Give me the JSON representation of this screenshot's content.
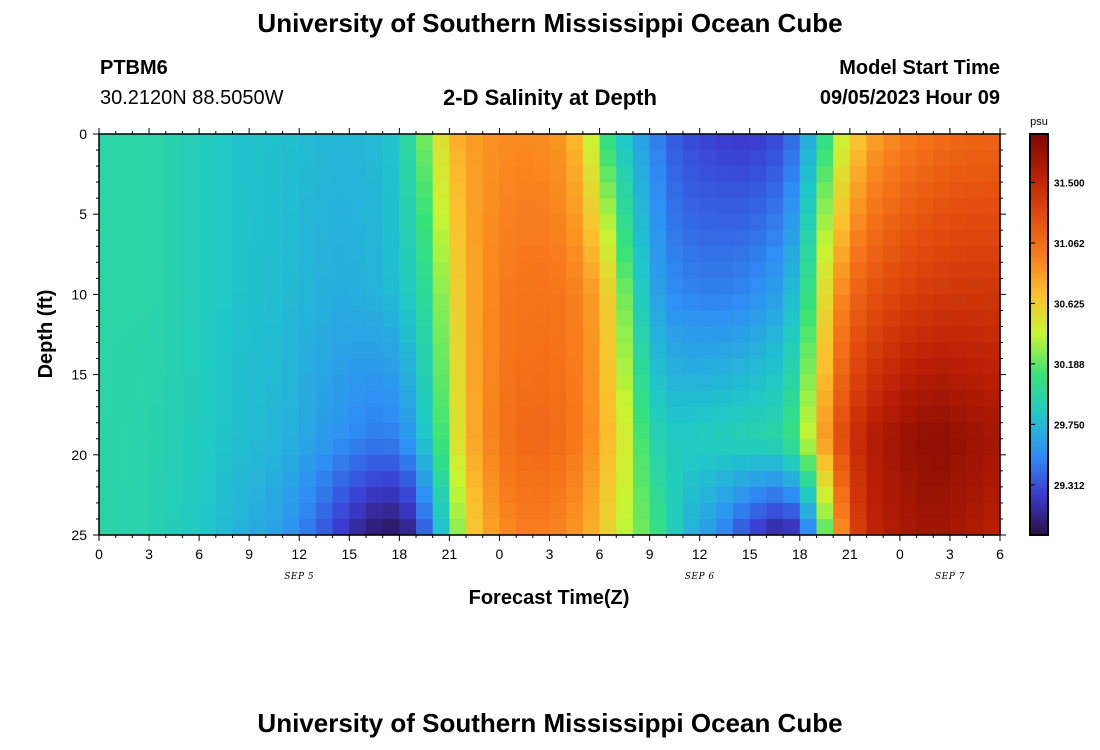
{
  "header": {
    "title": "University of Southern Mississippi Ocean Cube",
    "station": "PTBM6",
    "coords": "30.2120N  88.5050W",
    "plot_title": "2-D Salinity at Depth",
    "model_label": "Model Start Time",
    "model_time": "09/05/2023 Hour 09"
  },
  "footer": {
    "title": "University of Southern Mississippi Ocean Cube"
  },
  "chart_data": {
    "type": "heatmap",
    "xlabel": "Forecast Time(Z)",
    "ylabel": "Depth (ft)",
    "x_range_hours": [
      0,
      54
    ],
    "y_ticks": [
      "0",
      "5",
      "10",
      "15",
      "20",
      "25"
    ],
    "ylim": [
      0,
      25
    ],
    "x_ticks": [
      "0",
      "3",
      "6",
      "9",
      "12",
      "15",
      "18",
      "21",
      "0",
      "3",
      "6",
      "9",
      "12",
      "15",
      "18",
      "21",
      "0",
      "3",
      "6"
    ],
    "date_labels": [
      {
        "text": "SEP 5",
        "at_hour": 12
      },
      {
        "text": "SEP 6",
        "at_hour": 36
      },
      {
        "text": "SEP 7",
        "at_hour": 51
      }
    ],
    "colorbar": {
      "unit": "psu",
      "range": [
        28.95,
        31.85
      ],
      "ticks": [
        "29.312",
        "29.750",
        "30.188",
        "30.625",
        "31.062",
        "31.500"
      ],
      "colors": [
        "#2a0f46",
        "#3b3bd0",
        "#2f8ef5",
        "#20c8c8",
        "#38e27a",
        "#c8f532",
        "#fbc02d",
        "#f87a1c",
        "#e04a0c",
        "#b81e05",
        "#7e0802"
      ]
    },
    "salinity_profile_notes": "columns every 1 hour, rows every 1 ft; low salinity early, high-salinity pulses mid and late",
    "columns": [
      {
        "h": 0,
        "surf": 29.95,
        "mid": 29.95,
        "deep": 29.95,
        "bot": 29.95
      },
      {
        "h": 3,
        "surf": 29.95,
        "mid": 29.95,
        "deep": 29.93,
        "bot": 29.92
      },
      {
        "h": 6,
        "surf": 29.88,
        "mid": 29.88,
        "deep": 29.86,
        "bot": 29.84
      },
      {
        "h": 8,
        "surf": 29.8,
        "mid": 29.8,
        "deep": 29.78,
        "bot": 29.72
      },
      {
        "h": 11,
        "surf": 29.78,
        "mid": 29.76,
        "deep": 29.72,
        "bot": 29.6
      },
      {
        "h": 13,
        "surf": 29.74,
        "mid": 29.7,
        "deep": 29.62,
        "bot": 29.4
      },
      {
        "h": 15,
        "surf": 29.72,
        "mid": 29.68,
        "deep": 29.52,
        "bot": 29.15
      },
      {
        "h": 17,
        "surf": 29.76,
        "mid": 29.72,
        "deep": 29.46,
        "bot": 28.98
      },
      {
        "h": 18,
        "surf": 29.85,
        "mid": 29.78,
        "deep": 29.5,
        "bot": 29.0
      },
      {
        "h": 19,
        "surf": 30.1,
        "mid": 29.9,
        "deep": 29.65,
        "bot": 29.15
      },
      {
        "h": 20,
        "surf": 30.35,
        "mid": 30.1,
        "deep": 29.95,
        "bot": 29.55
      },
      {
        "h": 21,
        "surf": 30.7,
        "mid": 30.45,
        "deep": 30.3,
        "bot": 30.0
      },
      {
        "h": 22,
        "surf": 30.82,
        "mid": 30.75,
        "deep": 30.72,
        "bot": 30.55
      },
      {
        "h": 24,
        "surf": 30.9,
        "mid": 30.98,
        "deep": 31.02,
        "bot": 30.9
      },
      {
        "h": 26,
        "surf": 30.92,
        "mid": 31.02,
        "deep": 31.1,
        "bot": 30.98
      },
      {
        "h": 28,
        "surf": 30.85,
        "mid": 31.0,
        "deep": 31.05,
        "bot": 30.92
      },
      {
        "h": 29,
        "surf": 30.6,
        "mid": 30.92,
        "deep": 30.95,
        "bot": 30.82
      },
      {
        "h": 30,
        "surf": 30.2,
        "mid": 30.78,
        "deep": 30.82,
        "bot": 30.7
      },
      {
        "h": 31,
        "surf": 29.9,
        "mid": 30.45,
        "deep": 30.6,
        "bot": 30.45
      },
      {
        "h": 32,
        "surf": 29.7,
        "mid": 30.0,
        "deep": 30.3,
        "bot": 30.3
      },
      {
        "h": 33,
        "surf": 29.55,
        "mid": 29.7,
        "deep": 29.98,
        "bot": 30.15
      },
      {
        "h": 34,
        "surf": 29.4,
        "mid": 29.55,
        "deep": 29.85,
        "bot": 30.0
      },
      {
        "h": 35,
        "surf": 29.3,
        "mid": 29.5,
        "deep": 29.85,
        "bot": 29.75
      },
      {
        "h": 37,
        "surf": 29.25,
        "mid": 29.48,
        "deep": 29.88,
        "bot": 29.55
      },
      {
        "h": 39,
        "surf": 29.22,
        "mid": 29.52,
        "deep": 29.92,
        "bot": 29.25
      },
      {
        "h": 41,
        "surf": 29.3,
        "mid": 29.65,
        "deep": 29.98,
        "bot": 29.05
      },
      {
        "h": 42,
        "surf": 29.5,
        "mid": 29.85,
        "deep": 30.2,
        "bot": 29.2
      },
      {
        "h": 43,
        "surf": 29.85,
        "mid": 30.3,
        "deep": 30.6,
        "bot": 29.7
      },
      {
        "h": 44,
        "surf": 30.25,
        "mid": 30.8,
        "deep": 31.1,
        "bot": 30.6
      },
      {
        "h": 45,
        "surf": 30.55,
        "mid": 31.05,
        "deep": 31.4,
        "bot": 31.2
      },
      {
        "h": 46,
        "surf": 30.78,
        "mid": 31.2,
        "deep": 31.55,
        "bot": 31.5
      },
      {
        "h": 48,
        "surf": 30.95,
        "mid": 31.32,
        "deep": 31.7,
        "bot": 31.62
      },
      {
        "h": 50,
        "surf": 31.05,
        "mid": 31.38,
        "deep": 31.78,
        "bot": 31.68
      },
      {
        "h": 52,
        "surf": 31.1,
        "mid": 31.4,
        "deep": 31.72,
        "bot": 31.62
      },
      {
        "h": 54,
        "surf": 31.12,
        "mid": 31.4,
        "deep": 31.65,
        "bot": 31.55
      }
    ]
  }
}
